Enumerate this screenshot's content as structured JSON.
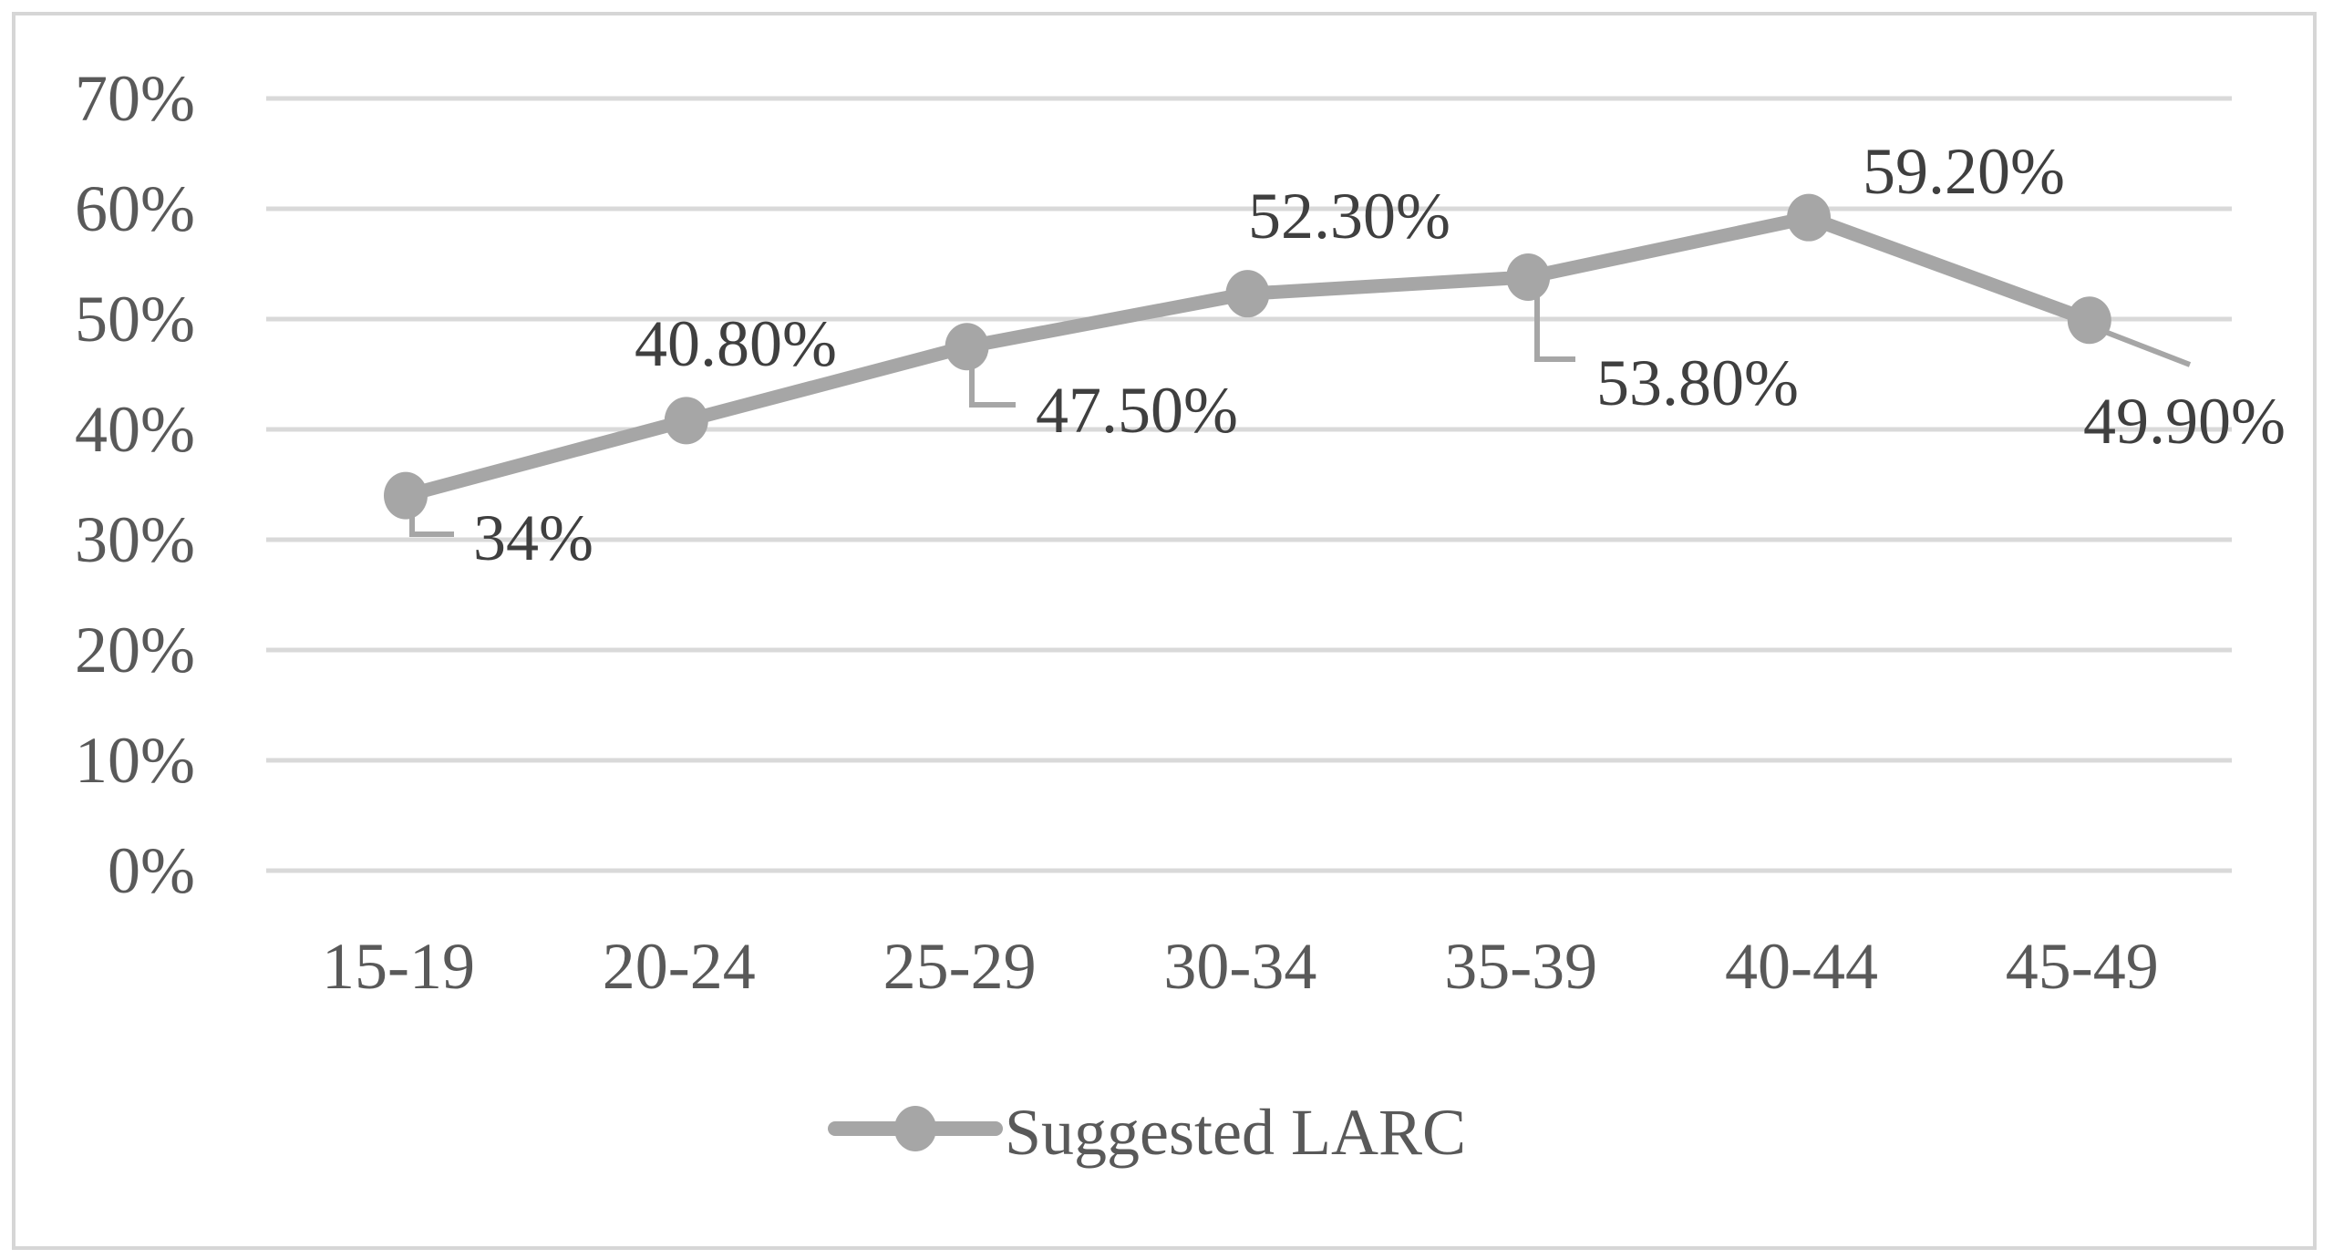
{
  "chart_data": {
    "type": "line",
    "title": "",
    "xlabel": "",
    "ylabel": "",
    "categories": [
      "15-19",
      "20-24",
      "25-29",
      "30-34",
      "35-39",
      "40-44",
      "45-49"
    ],
    "series": [
      {
        "name": "Suggested LARC",
        "values": [
          34,
          40.8,
          47.5,
          52.3,
          53.8,
          59.2,
          49.9
        ],
        "labels": [
          "34%",
          "40.80%",
          "47.50%",
          "52.30%",
          "53.80%",
          "59.20%",
          "49.90%"
        ]
      }
    ],
    "y_ticks": [
      "0%",
      "10%",
      "20%",
      "30%",
      "40%",
      "50%",
      "60%",
      "70%"
    ],
    "ylim": [
      0,
      70
    ],
    "grid": "horizontal",
    "legend_position": "bottom-center",
    "colors": {
      "series_line": "#a6a6a6",
      "marker": "#a6a6a6",
      "leader_line": "#a6a6a6",
      "gridline": "#d9d9d9",
      "axis_text": "#595959",
      "data_label_text": "#3f3f3f",
      "frame_border": "#d6d6d6",
      "background": "#ffffff"
    }
  }
}
